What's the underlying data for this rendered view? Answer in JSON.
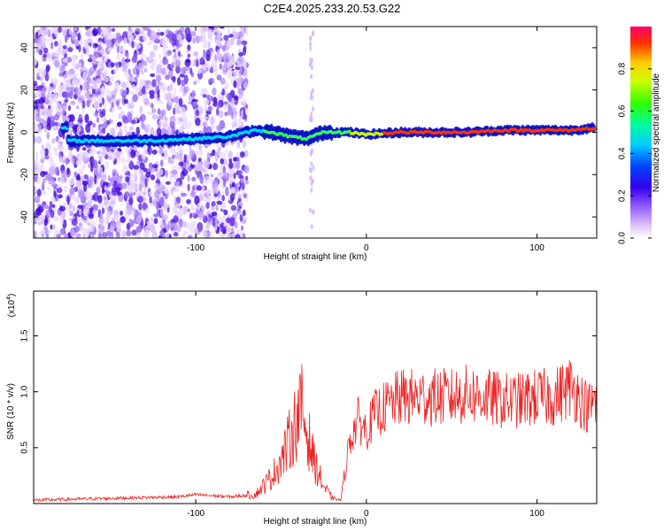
{
  "title": "C2E4.2025.233.20.53.G22",
  "chart_data": [
    {
      "type": "heatmap",
      "xlabel": "Height of straight line (km)",
      "ylabel": "Frequency (Hz)",
      "xlim": [
        -195,
        135
      ],
      "ylim": [
        -50,
        50
      ],
      "xticks": [
        -100,
        0,
        100
      ],
      "xtick_labels": [
        "-100",
        "0",
        "100"
      ],
      "yticks": [
        -40,
        -20,
        0,
        20,
        40
      ],
      "ytick_labels": [
        "-40",
        "-20",
        "0",
        "20",
        "40"
      ],
      "ridge": {
        "description_x": [
          -175,
          -150,
          -125,
          -100,
          -80,
          -65,
          -55,
          -45,
          -35,
          -25,
          -10,
          0,
          20,
          40,
          60,
          80,
          100,
          120,
          133
        ],
        "frequency_hz": [
          -4,
          -4,
          -4,
          -3,
          -2,
          1,
          0,
          -2,
          -3,
          0,
          0,
          -1,
          0,
          0,
          0,
          1,
          1,
          1,
          2
        ]
      },
      "colorbar": {
        "label": "Normalized spectral amplitude",
        "range": [
          0,
          1
        ],
        "ticks": [
          0.0,
          0.2,
          0.4,
          0.6,
          0.8
        ],
        "tick_labels": [
          "0.0",
          "0.2",
          "0.4",
          "0.6",
          "0.8"
        ]
      },
      "grid": false
    },
    {
      "type": "line",
      "xlabel": "Height of straight line (km)",
      "ylabel": "SNR (10 * v/v)",
      "y_multiplier_label": "(x10",
      "y_multiplier_exponent": "4",
      "y_multiplier_close": ")",
      "xlim": [
        -195,
        135
      ],
      "ylim": [
        0,
        1.9
      ],
      "xticks": [
        -100,
        0,
        100
      ],
      "xtick_labels": [
        "-100",
        "0",
        "100"
      ],
      "yticks": [
        0.5,
        1.0,
        1.5
      ],
      "ytick_labels": [
        "0.5",
        "1.0",
        "1.5"
      ],
      "series": [
        {
          "color": "#ee2222",
          "x": [
            -195,
            -170,
            -140,
            -110,
            -100,
            -80,
            -65,
            -55,
            -48,
            -42,
            -38,
            -35,
            -30,
            -25,
            -20,
            -15,
            -10,
            -5,
            0,
            5,
            10,
            20,
            30,
            40,
            50,
            60,
            70,
            80,
            90,
            100,
            110,
            115,
            120,
            125,
            130,
            133
          ],
          "y": [
            0.03,
            0.04,
            0.05,
            0.06,
            0.08,
            0.06,
            0.08,
            0.25,
            0.45,
            0.7,
            0.85,
            0.65,
            0.35,
            0.15,
            0.05,
            0.03,
            0.55,
            0.75,
            0.65,
            0.8,
            0.85,
            0.95,
            0.95,
            0.95,
            0.95,
            0.98,
            0.95,
            0.92,
            0.92,
            0.95,
            0.95,
            1.0,
            1.05,
            0.95,
            0.85,
            0.9
          ]
        }
      ],
      "grid": false
    }
  ]
}
